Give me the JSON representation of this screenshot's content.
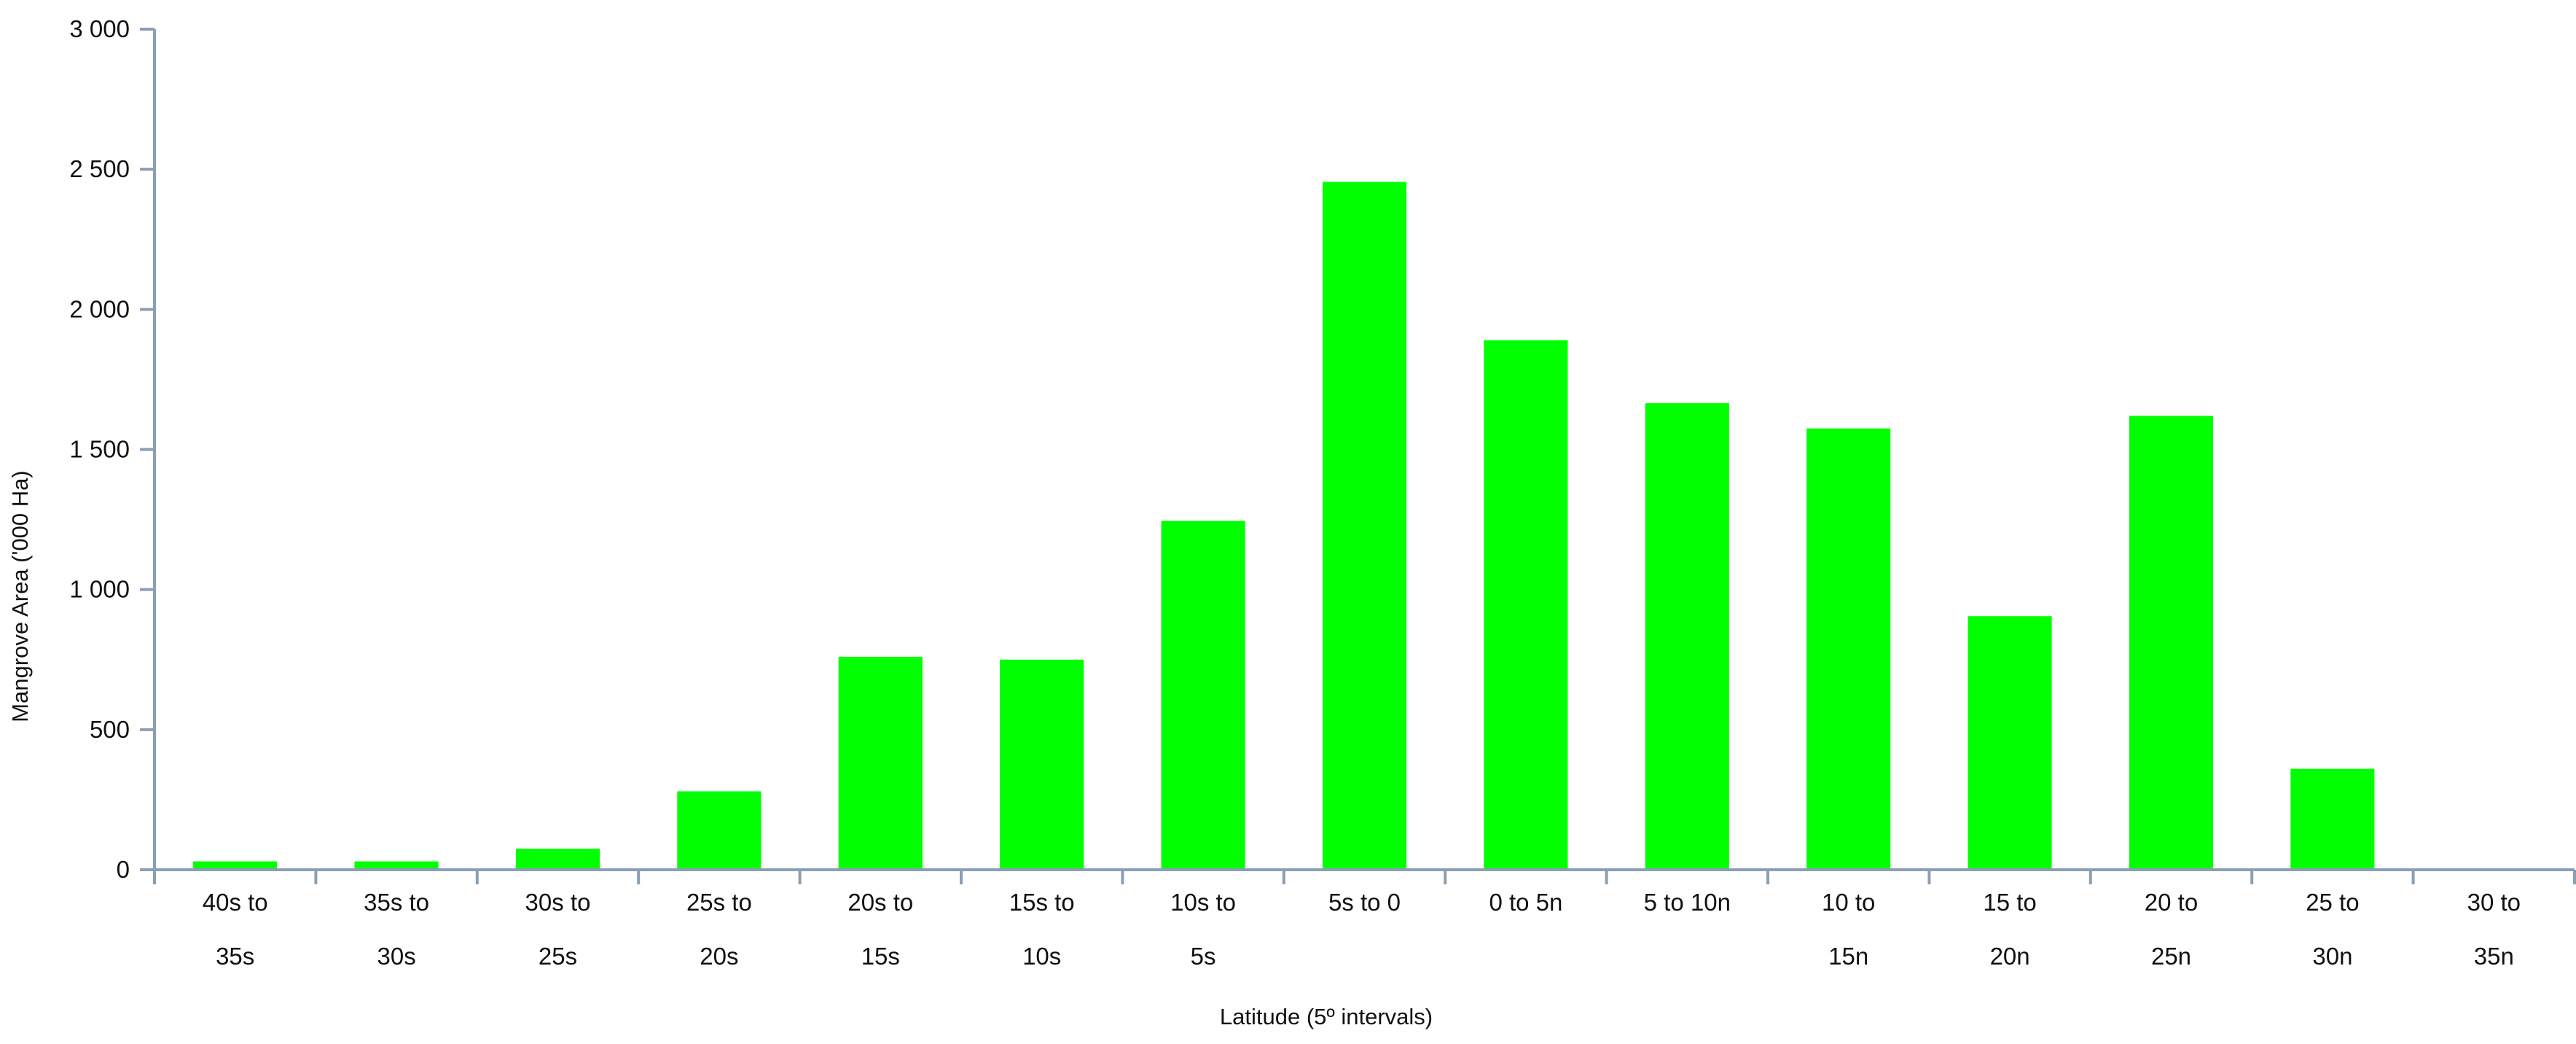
{
  "chart_data": {
    "type": "bar",
    "title": "",
    "xlabel": "Latitude (5º intervals)",
    "ylabel": "Mangrove Area ('000 Ha)",
    "ylim": [
      0,
      3000
    ],
    "yticks": [
      0,
      500,
      1000,
      1500,
      2000,
      2500,
      3000
    ],
    "ytick_labels": [
      "0",
      "500",
      "1 000",
      "1 500",
      "2 000",
      "2 500",
      "3 000"
    ],
    "grid": false,
    "legend": "none",
    "bar_color": "#00ff00",
    "axis_color": "#8a9fb3",
    "categories": [
      [
        "40s to",
        "35s"
      ],
      [
        "35s to",
        "30s"
      ],
      [
        "30s to",
        "25s"
      ],
      [
        "25s to",
        "20s"
      ],
      [
        "20s to",
        "15s"
      ],
      [
        "15s to",
        "10s"
      ],
      [
        "10s to",
        "5s"
      ],
      [
        "5s to 0"
      ],
      [
        "0 to 5n"
      ],
      [
        "5 to 10n"
      ],
      [
        "10 to",
        "15n"
      ],
      [
        "15 to",
        "20n"
      ],
      [
        "20 to",
        "25n"
      ],
      [
        "25 to",
        "30n"
      ],
      [
        "30 to",
        "35n"
      ]
    ],
    "values": [
      30,
      30,
      75,
      280,
      760,
      750,
      1245,
      2455,
      1890,
      1665,
      1575,
      905,
      1620,
      360,
      0
    ]
  }
}
